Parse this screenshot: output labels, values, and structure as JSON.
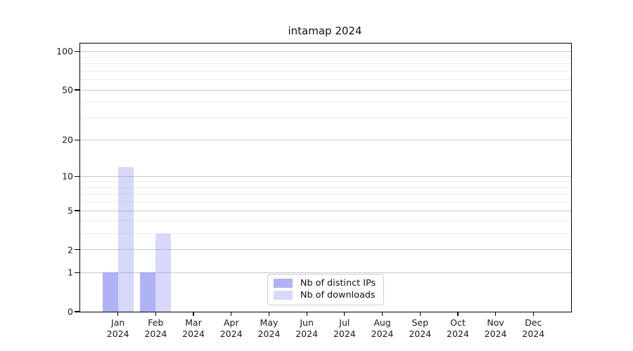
{
  "title": "intamap 2024",
  "chart_data": {
    "type": "bar",
    "title": "intamap 2024",
    "categories": [
      "Jan",
      "Feb",
      "Mar",
      "Apr",
      "May",
      "Jun",
      "Jul",
      "Aug",
      "Sep",
      "Oct",
      "Nov",
      "Dec"
    ],
    "category_year_label": "2024",
    "series": [
      {
        "name": "Nb of distinct IPs",
        "color": "rgba(122,127,238,0.60)",
        "values": [
          1,
          1,
          0,
          0,
          0,
          0,
          0,
          0,
          0,
          0,
          0,
          0
        ]
      },
      {
        "name": "Nb of downloads",
        "color": "rgba(122,127,238,0.30)",
        "values": [
          12,
          3,
          0,
          0,
          0,
          0,
          0,
          0,
          0,
          0,
          0,
          0
        ]
      }
    ],
    "yticks": [
      0,
      1,
      2,
      5,
      10,
      20,
      50,
      100
    ],
    "minor_gridline_values": [
      1,
      2,
      3,
      4,
      5,
      6,
      7,
      8,
      9,
      10,
      20,
      30,
      40,
      50,
      60,
      70,
      80,
      90,
      100
    ],
    "scale": "log1p",
    "ylim": [
      0,
      115
    ],
    "grid": "horizontal",
    "legend_position": "lower center",
    "colors": {
      "minor_gridline": "#ededed",
      "major_gridline": "#c9c9c9",
      "axis": "#000000",
      "tick_label": "#1a1a1a"
    }
  }
}
